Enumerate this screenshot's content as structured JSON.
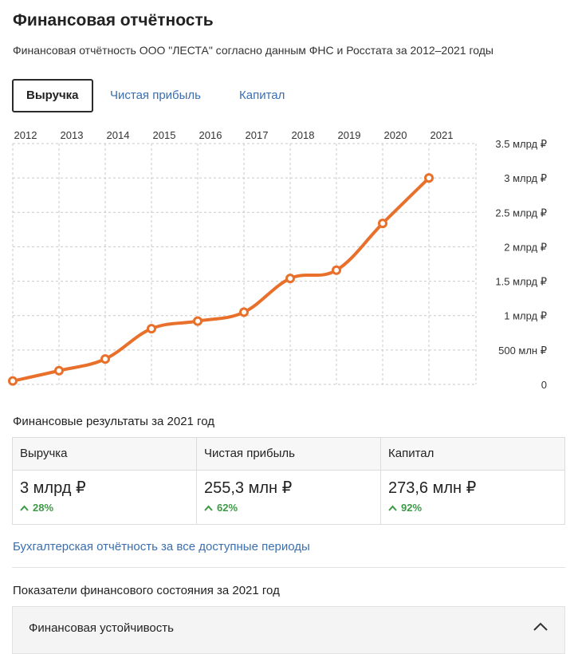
{
  "header": {
    "title": "Финансовая отчётность",
    "subtitle": "Финансовая отчётность ООО \"ЛЕСТА\" согласно данным ФНС и Росстата за 2012–2021 годы"
  },
  "tabs": [
    {
      "label": "Выручка",
      "active": true
    },
    {
      "label": "Чистая прибыль",
      "active": false
    },
    {
      "label": "Капитал",
      "active": false
    }
  ],
  "chart_data": {
    "type": "line",
    "title": "",
    "xlabel": "",
    "ylabel": "",
    "x": [
      "2012",
      "2013",
      "2014",
      "2015",
      "2016",
      "2017",
      "2018",
      "2019",
      "2020",
      "2021"
    ],
    "series": [
      {
        "values": [
          0.05,
          0.2,
          0.37,
          0.81,
          0.92,
          1.05,
          1.54,
          1.66,
          2.34,
          3.0
        ]
      }
    ],
    "y_unit": "млрд ₽",
    "ylim": [
      0,
      3.5
    ],
    "yticks": [
      0,
      0.5,
      1,
      1.5,
      2,
      2.5,
      3,
      3.5
    ],
    "ytick_labels": [
      "0",
      "500 млн ₽",
      "1 млрд ₽",
      "1.5 млрд ₽",
      "2 млрд ₽",
      "2.5 млрд ₽",
      "3 млрд ₽",
      "3.5 млрд ₽"
    ],
    "x_axis_position": "top",
    "y_axis_position": "right",
    "grid": true,
    "line_color": "#e8702a"
  },
  "results": {
    "title": "Финансовые результаты за 2021 год",
    "items": [
      {
        "label": "Выручка",
        "value": "3 млрд ₽",
        "growth": "28%"
      },
      {
        "label": "Чистая прибыль",
        "value": "255,3 млн ₽",
        "growth": "62%"
      },
      {
        "label": "Капитал",
        "value": "273,6 млн ₽",
        "growth": "92%"
      }
    ]
  },
  "link_all_periods": "Бухгалтерская отчётность за все доступные периоды",
  "indicators": {
    "title": "Показатели финансового состояния за 2021 год",
    "accordion_label": "Финансовая устойчивость",
    "accordion_icon": "chevron-up-icon"
  },
  "colors": {
    "accent_line": "#e8702a",
    "link": "#3a6fb0",
    "growth": "#3d9a46"
  }
}
